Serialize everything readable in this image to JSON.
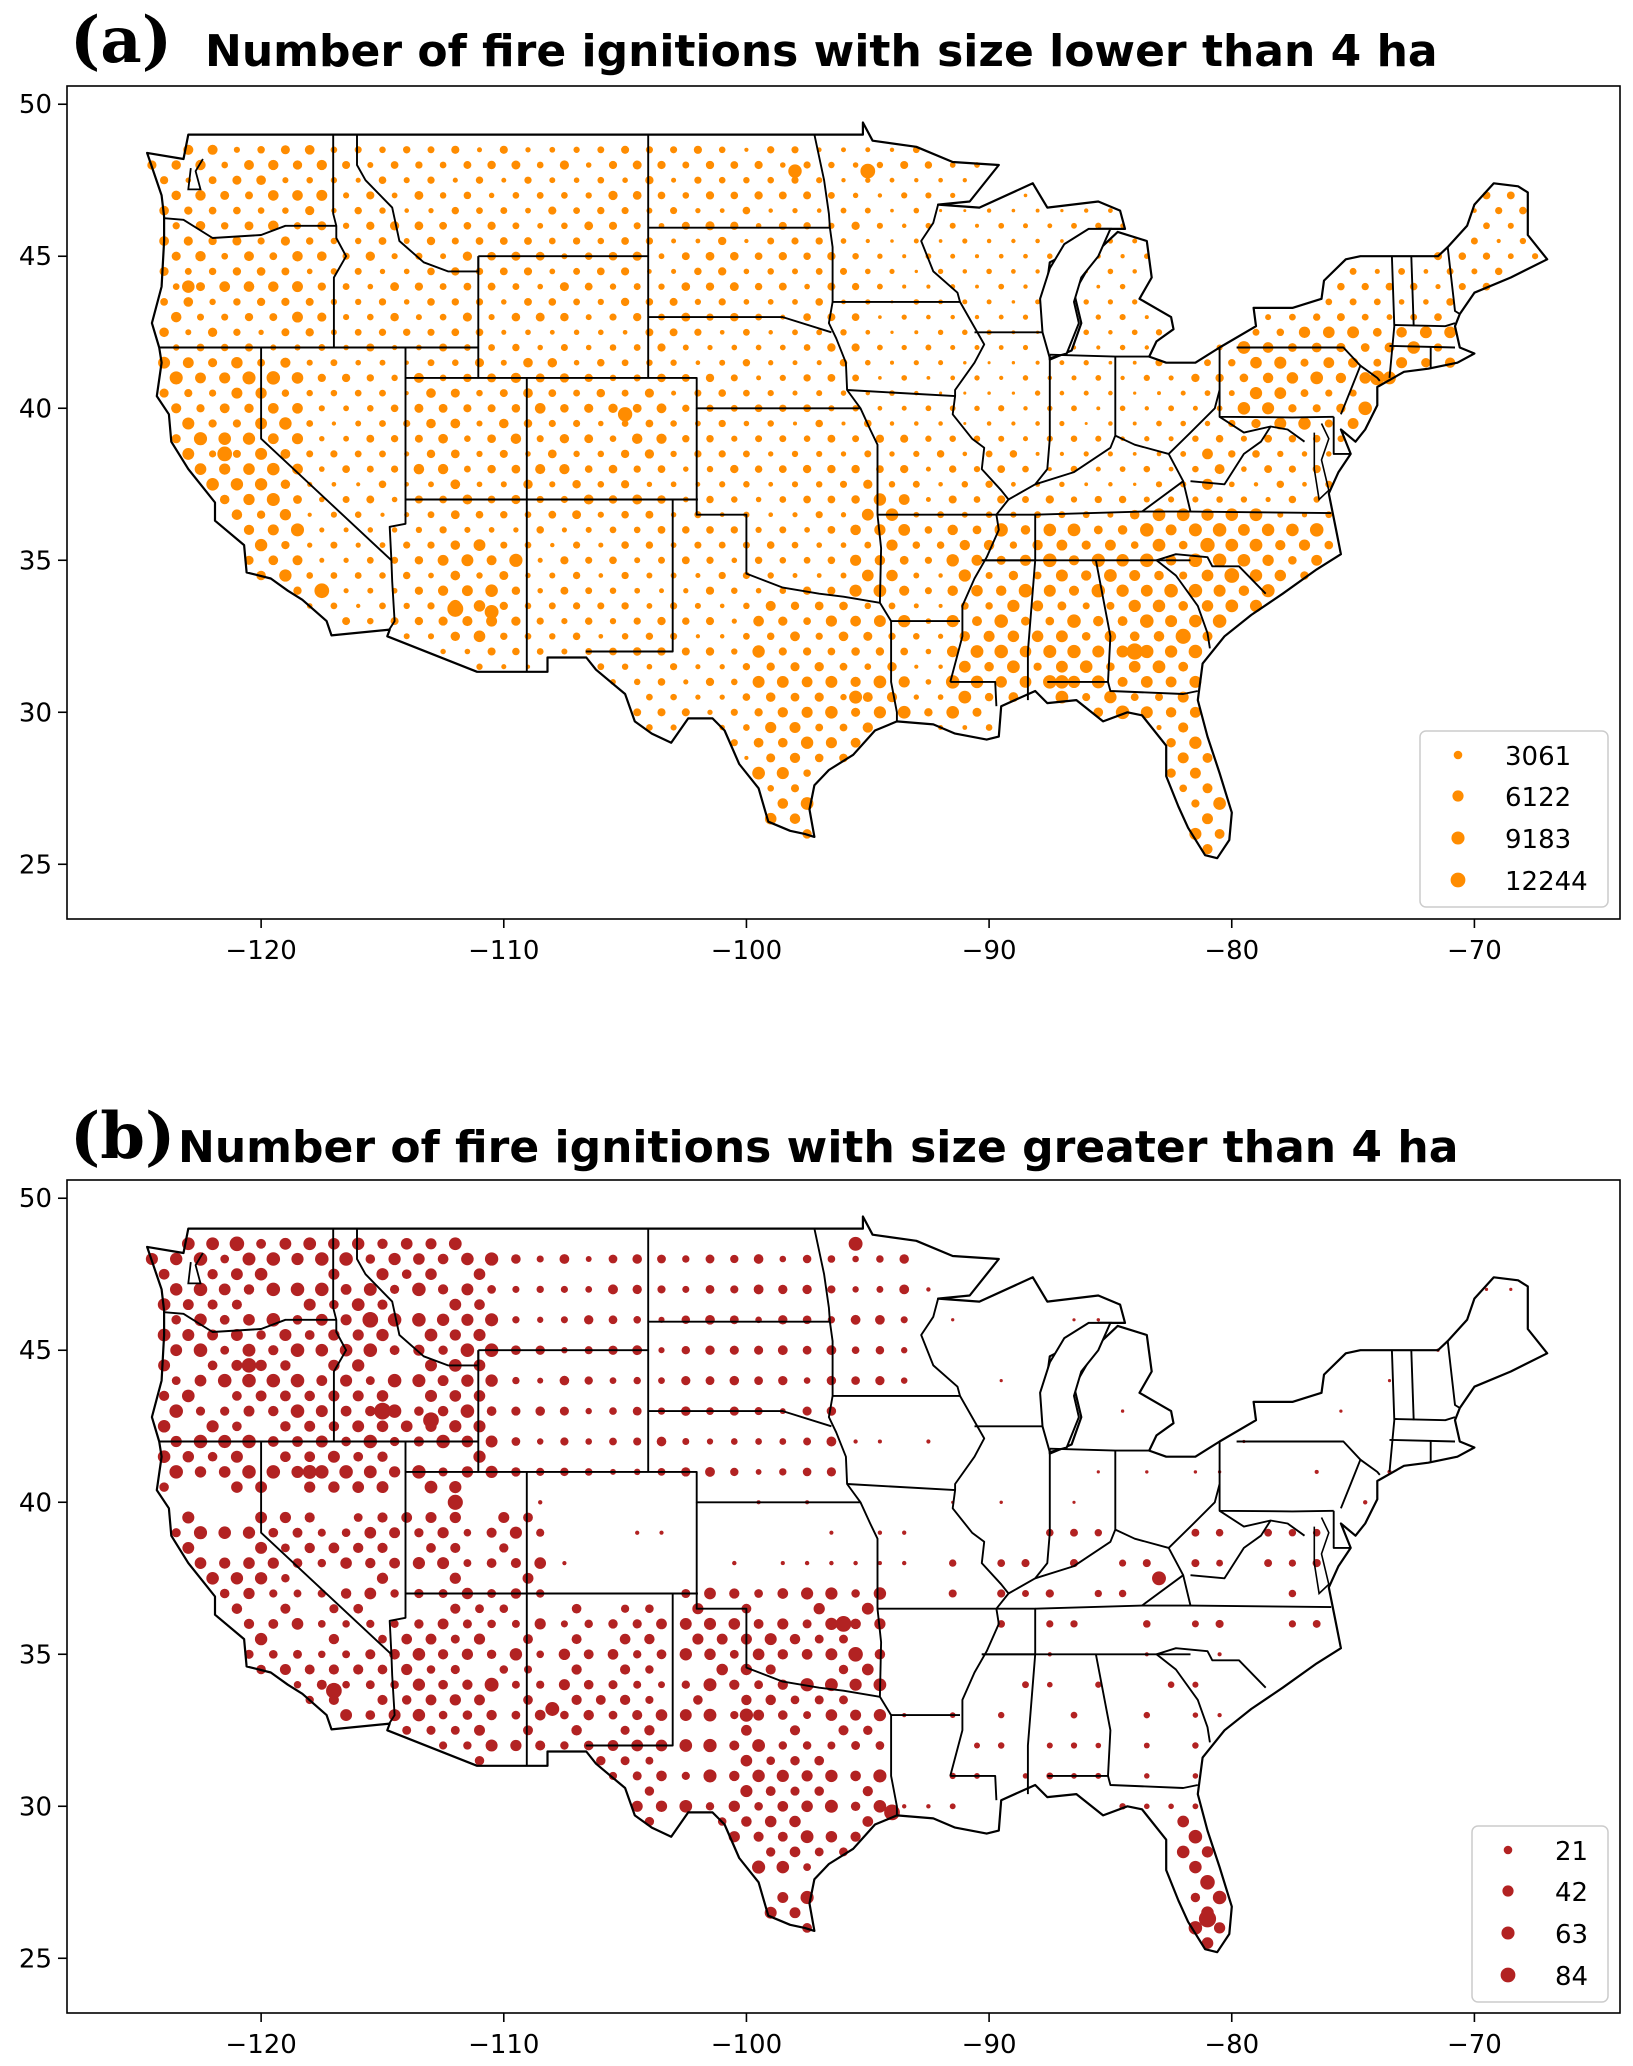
{
  "chart_data": [
    {
      "type": "scatter",
      "map": "contiguous-us-states",
      "panel_label": "(a)",
      "title": "Number of fire ignitions with size lower than 4 ha",
      "marker_color": "#ff8c00",
      "xlim": [
        -128,
        -64
      ],
      "ylim": [
        23.2,
        50.6
      ],
      "xticks": [
        {
          "value": -120,
          "label": "−120"
        },
        {
          "value": -110,
          "label": "−110"
        },
        {
          "value": -100,
          "label": "−100"
        },
        {
          "value": -90,
          "label": "−90"
        },
        {
          "value": -80,
          "label": "−80"
        },
        {
          "value": -70,
          "label": "−70"
        }
      ],
      "yticks": [
        {
          "value": 25,
          "label": "25"
        },
        {
          "value": 30,
          "label": "30"
        },
        {
          "value": 35,
          "label": "35"
        },
        {
          "value": 40,
          "label": "40"
        },
        {
          "value": 45,
          "label": "45"
        },
        {
          "value": 50,
          "label": "50"
        }
      ],
      "grid": false,
      "legend_position": "bottom-right",
      "legend": [
        {
          "label": "3061",
          "value": 3061
        },
        {
          "label": "6122",
          "value": 6122
        },
        {
          "label": "9183",
          "value": 9183
        },
        {
          "label": "12244",
          "value": 12244
        }
      ],
      "max_value": 12244,
      "hotspots": [
        {
          "lon": -121.5,
          "lat": 38.5,
          "value": 9000
        },
        {
          "lon": -119.5,
          "lat": 37.0,
          "value": 7000
        },
        {
          "lon": -117.5,
          "lat": 34.0,
          "value": 9000
        },
        {
          "lon": -112.0,
          "lat": 33.4,
          "value": 10500
        },
        {
          "lon": -110.5,
          "lat": 33.3,
          "value": 8000
        },
        {
          "lon": -105.0,
          "lat": 39.8,
          "value": 8500
        },
        {
          "lon": -98.0,
          "lat": 47.8,
          "value": 7500
        },
        {
          "lon": -95.0,
          "lat": 47.8,
          "value": 9000
        },
        {
          "lon": -84.0,
          "lat": 32.0,
          "value": 11000
        },
        {
          "lon": -82.0,
          "lat": 32.5,
          "value": 9500
        },
        {
          "lon": -81.0,
          "lat": 35.5,
          "value": 8500
        },
        {
          "lon": -80.0,
          "lat": 34.5,
          "value": 9000
        },
        {
          "lon": -74.0,
          "lat": 41.0,
          "value": 9000
        },
        {
          "lon": -95.5,
          "lat": 30.5,
          "value": 7000
        },
        {
          "lon": -87.0,
          "lat": 31.0,
          "value": 7500
        },
        {
          "lon": -123.0,
          "lat": 44.0,
          "value": 6500
        },
        {
          "lon": -94.0,
          "lat": 36.5,
          "value": 6500
        }
      ]
    },
    {
      "type": "scatter",
      "map": "contiguous-us-states",
      "panel_label": "(b)",
      "title": "Number of fire ignitions with size greater than 4 ha",
      "marker_color": "#b22222",
      "xlim": [
        -128,
        -64
      ],
      "ylim": [
        23.2,
        50.6
      ],
      "xticks": [
        {
          "value": -120,
          "label": "−120"
        },
        {
          "value": -110,
          "label": "−110"
        },
        {
          "value": -100,
          "label": "−100"
        },
        {
          "value": -90,
          "label": "−90"
        },
        {
          "value": -80,
          "label": "−80"
        },
        {
          "value": -70,
          "label": "−70"
        }
      ],
      "yticks": [
        {
          "value": 25,
          "label": "25"
        },
        {
          "value": 30,
          "label": "30"
        },
        {
          "value": 35,
          "label": "35"
        },
        {
          "value": 40,
          "label": "40"
        },
        {
          "value": 45,
          "label": "45"
        },
        {
          "value": 50,
          "label": "50"
        }
      ],
      "grid": false,
      "legend_position": "bottom-right",
      "legend": [
        {
          "label": "21",
          "value": 21
        },
        {
          "label": "42",
          "value": 42
        },
        {
          "label": "63",
          "value": 63
        },
        {
          "label": "84",
          "value": 84
        }
      ],
      "max_value": 84,
      "hotspots": [
        {
          "lon": -120.5,
          "lat": 44.5,
          "value": 60
        },
        {
          "lon": -115.5,
          "lat": 46.0,
          "value": 70
        },
        {
          "lon": -115.0,
          "lat": 43.0,
          "value": 80
        },
        {
          "lon": -113.0,
          "lat": 42.7,
          "value": 70
        },
        {
          "lon": -112.0,
          "lat": 40.0,
          "value": 65
        },
        {
          "lon": -118.0,
          "lat": 41.0,
          "value": 55
        },
        {
          "lon": -117.0,
          "lat": 33.8,
          "value": 70
        },
        {
          "lon": -110.5,
          "lat": 34.0,
          "value": 55
        },
        {
          "lon": -108.0,
          "lat": 33.2,
          "value": 55
        },
        {
          "lon": -96.0,
          "lat": 36.0,
          "value": 70
        },
        {
          "lon": -95.5,
          "lat": 35.0,
          "value": 60
        },
        {
          "lon": -94.0,
          "lat": 29.8,
          "value": 70
        },
        {
          "lon": -81.0,
          "lat": 26.3,
          "value": 84
        },
        {
          "lon": -81.0,
          "lat": 27.5,
          "value": 60
        },
        {
          "lon": -83.0,
          "lat": 37.5,
          "value": 55
        },
        {
          "lon": -100.0,
          "lat": 33.0,
          "value": 50
        },
        {
          "lon": -121.0,
          "lat": 48.5,
          "value": 60
        },
        {
          "lon": -95.5,
          "lat": 48.5,
          "value": 55
        }
      ]
    }
  ]
}
